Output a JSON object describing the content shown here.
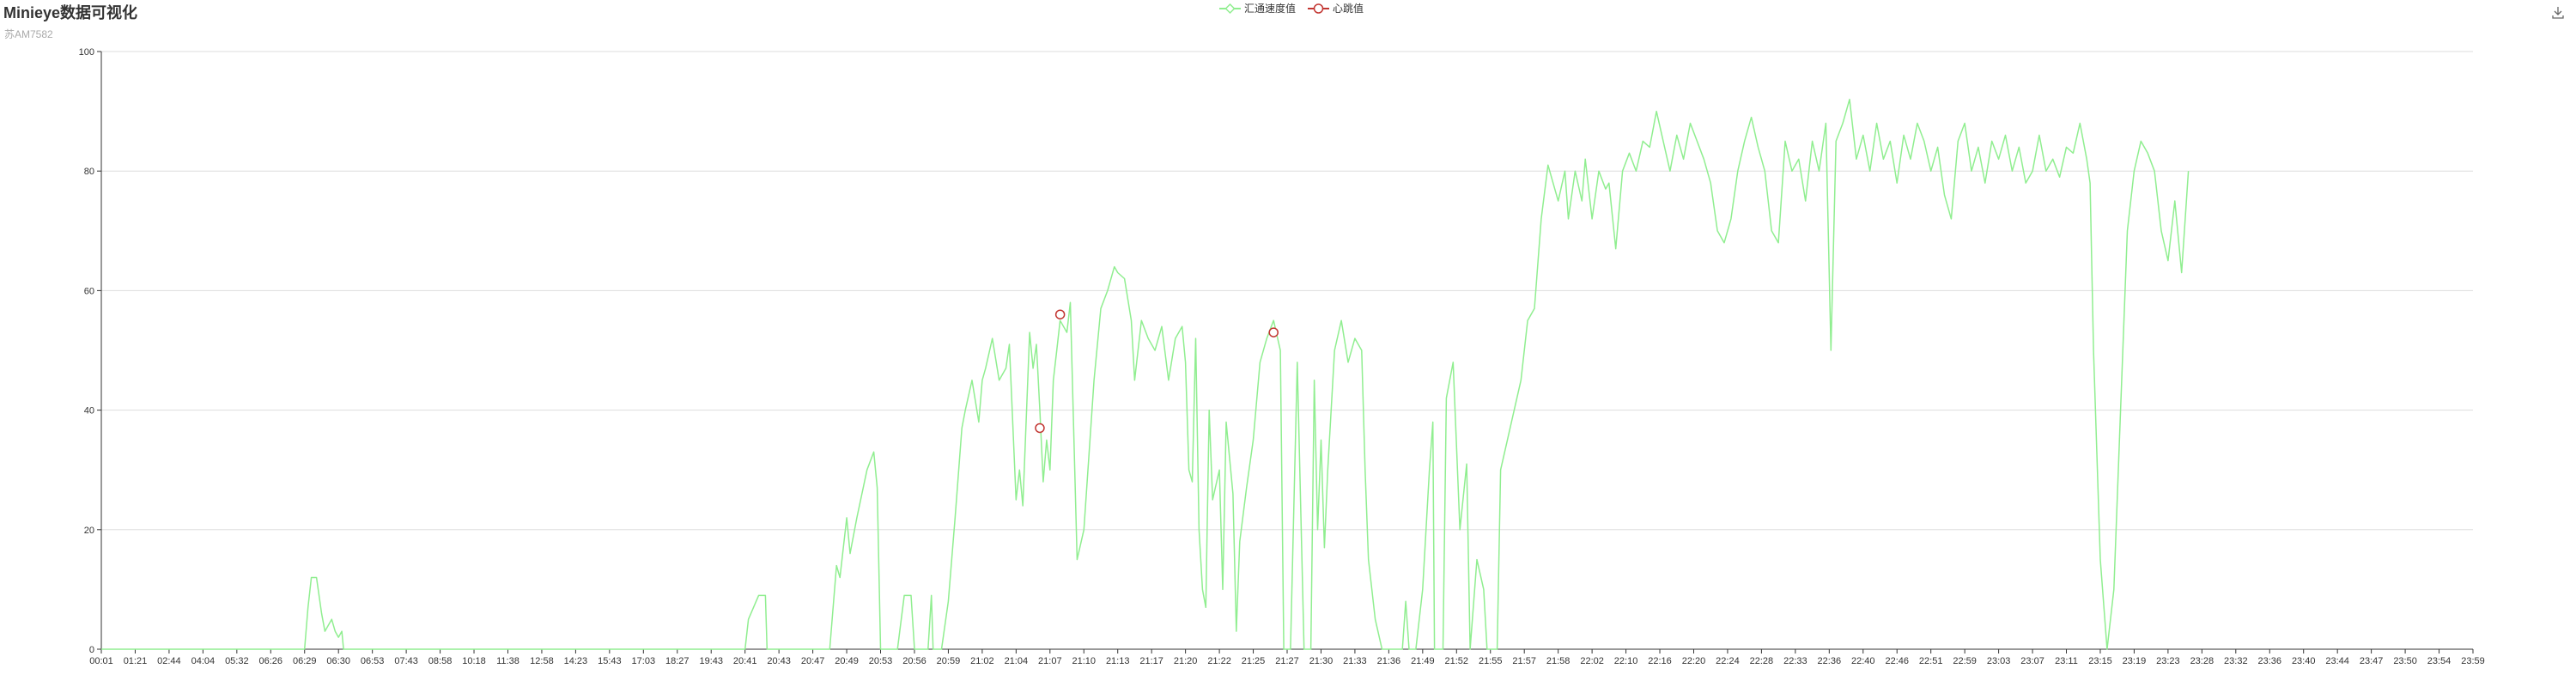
{
  "title": "Minieye数据可视化",
  "subtitle": "苏AM7582",
  "legend": [
    {
      "name": "汇通速度值",
      "color": "#90ee90"
    },
    {
      "name": "心跳值",
      "color": "#c23531"
    }
  ],
  "toolbox": {
    "icon": "download-icon"
  },
  "chart_data": {
    "type": "line",
    "title": "Minieye数据可视化",
    "subtitle": "苏AM7582",
    "xlabel": "",
    "ylabel": "",
    "ylim": [
      0,
      100
    ],
    "yticks": [
      0,
      20,
      40,
      60,
      80,
      100
    ],
    "grid": true,
    "legend_position": "top-center",
    "x_tick_labels": [
      "00:01",
      "01:21",
      "02:44",
      "04:04",
      "05:32",
      "06:26",
      "06:29",
      "06:30",
      "06:53",
      "07:43",
      "08:58",
      "10:18",
      "11:38",
      "12:58",
      "14:23",
      "15:43",
      "17:03",
      "18:27",
      "19:43",
      "20:41",
      "20:43",
      "20:47",
      "20:49",
      "20:53",
      "20:56",
      "20:59",
      "21:02",
      "21:04",
      "21:07",
      "21:10",
      "21:13",
      "21:17",
      "21:20",
      "21:22",
      "21:25",
      "21:27",
      "21:30",
      "21:33",
      "21:36",
      "21:49",
      "21:52",
      "21:55",
      "21:57",
      "21:58",
      "22:02",
      "22:10",
      "22:16",
      "22:20",
      "22:24",
      "22:28",
      "22:33",
      "22:36",
      "22:40",
      "22:46",
      "22:51",
      "22:59",
      "23:03",
      "23:07",
      "23:11",
      "23:15",
      "23:19",
      "23:23",
      "23:28",
      "23:32",
      "23:36",
      "23:40",
      "23:44",
      "23:47",
      "23:50",
      "23:54",
      "23:59"
    ],
    "series": [
      {
        "name": "汇通速度值",
        "color": "#90ee90",
        "points": [
          [
            0,
            0
          ],
          [
            6,
            0
          ],
          [
            6.1,
            7
          ],
          [
            6.2,
            12
          ],
          [
            6.35,
            12
          ],
          [
            6.5,
            6
          ],
          [
            6.6,
            3
          ],
          [
            6.8,
            5
          ],
          [
            6.9,
            3
          ],
          [
            7,
            2
          ],
          [
            7.1,
            3
          ],
          [
            7.15,
            0
          ],
          [
            7.5,
            0
          ],
          [
            19,
            0
          ],
          [
            19.1,
            5
          ],
          [
            19.4,
            9
          ],
          [
            19.6,
            9
          ],
          [
            19.65,
            0
          ],
          [
            21.5,
            0
          ],
          [
            21.7,
            14
          ],
          [
            21.8,
            12
          ],
          [
            22,
            22
          ],
          [
            22.1,
            16
          ],
          [
            22.3,
            22
          ],
          [
            22.6,
            30
          ],
          [
            22.8,
            33
          ],
          [
            22.9,
            27
          ],
          [
            23,
            0
          ],
          [
            23.5,
            0
          ],
          [
            23.7,
            9
          ],
          [
            23.9,
            9
          ],
          [
            24,
            0
          ],
          [
            24.4,
            0
          ],
          [
            24.5,
            9
          ],
          [
            24.55,
            0
          ],
          [
            24.8,
            0
          ],
          [
            25,
            8
          ],
          [
            25.2,
            22
          ],
          [
            25.4,
            37
          ],
          [
            25.5,
            40
          ],
          [
            25.7,
            45
          ],
          [
            25.9,
            38
          ],
          [
            26,
            45
          ],
          [
            26.1,
            47
          ],
          [
            26.3,
            52
          ],
          [
            26.5,
            45
          ],
          [
            26.7,
            47
          ],
          [
            26.8,
            51
          ],
          [
            27,
            25
          ],
          [
            27.1,
            30
          ],
          [
            27.2,
            24
          ],
          [
            27.4,
            53
          ],
          [
            27.5,
            47
          ],
          [
            27.6,
            51
          ],
          [
            27.7,
            40
          ],
          [
            27.8,
            28
          ],
          [
            27.9,
            35
          ],
          [
            28,
            30
          ],
          [
            28.1,
            45
          ],
          [
            28.2,
            50
          ],
          [
            28.3,
            55
          ],
          [
            28.5,
            53
          ],
          [
            28.6,
            58
          ],
          [
            28.8,
            15
          ],
          [
            29,
            20
          ],
          [
            29.3,
            45
          ],
          [
            29.5,
            57
          ],
          [
            29.7,
            60
          ],
          [
            29.9,
            64
          ],
          [
            30,
            63
          ],
          [
            30.2,
            62
          ],
          [
            30.4,
            55
          ],
          [
            30.5,
            45
          ],
          [
            30.7,
            55
          ],
          [
            30.9,
            52
          ],
          [
            31.1,
            50
          ],
          [
            31.3,
            54
          ],
          [
            31.5,
            45
          ],
          [
            31.7,
            52
          ],
          [
            31.9,
            54
          ],
          [
            32,
            48
          ],
          [
            32.1,
            30
          ],
          [
            32.2,
            28
          ],
          [
            32.3,
            52
          ],
          [
            32.4,
            20
          ],
          [
            32.5,
            10
          ],
          [
            32.6,
            7
          ],
          [
            32.7,
            40
          ],
          [
            32.8,
            25
          ],
          [
            33,
            30
          ],
          [
            33.1,
            10
          ],
          [
            33.2,
            38
          ],
          [
            33.4,
            26
          ],
          [
            33.5,
            3
          ],
          [
            33.6,
            18
          ],
          [
            33.8,
            27
          ],
          [
            34,
            35
          ],
          [
            34.2,
            48
          ],
          [
            34.4,
            52
          ],
          [
            34.6,
            55
          ],
          [
            34.8,
            50
          ],
          [
            34.9,
            0
          ],
          [
            35.1,
            0
          ],
          [
            35.3,
            48
          ],
          [
            35.5,
            0
          ],
          [
            35.7,
            0
          ],
          [
            35.8,
            45
          ],
          [
            35.9,
            20
          ],
          [
            36,
            35
          ],
          [
            36.1,
            17
          ],
          [
            36.2,
            30
          ],
          [
            36.4,
            50
          ],
          [
            36.6,
            55
          ],
          [
            36.8,
            48
          ],
          [
            37,
            52
          ],
          [
            37.2,
            50
          ],
          [
            37.3,
            30
          ],
          [
            37.4,
            15
          ],
          [
            37.6,
            5
          ],
          [
            37.8,
            0
          ],
          [
            38.4,
            0
          ],
          [
            38.5,
            8
          ],
          [
            38.6,
            0
          ],
          [
            38.8,
            0
          ],
          [
            39,
            10
          ],
          [
            39.2,
            30
          ],
          [
            39.3,
            38
          ],
          [
            39.35,
            0
          ],
          [
            39.6,
            0
          ],
          [
            39.7,
            42
          ],
          [
            39.9,
            48
          ],
          [
            40.1,
            20
          ],
          [
            40.3,
            31
          ],
          [
            40.4,
            0
          ],
          [
            40.6,
            15
          ],
          [
            40.8,
            10
          ],
          [
            40.9,
            0
          ],
          [
            41.2,
            0
          ],
          [
            41.3,
            30
          ],
          [
            41.5,
            35
          ],
          [
            41.7,
            40
          ],
          [
            41.9,
            45
          ],
          [
            42.1,
            55
          ],
          [
            42.3,
            57
          ],
          [
            42.5,
            72
          ],
          [
            42.7,
            81
          ],
          [
            42.9,
            77
          ],
          [
            43,
            75
          ],
          [
            43.2,
            80
          ],
          [
            43.3,
            72
          ],
          [
            43.5,
            80
          ],
          [
            43.7,
            75
          ],
          [
            43.8,
            82
          ],
          [
            44,
            72
          ],
          [
            44.2,
            80
          ],
          [
            44.4,
            77
          ],
          [
            44.5,
            78
          ],
          [
            44.7,
            67
          ],
          [
            44.9,
            80
          ],
          [
            45.1,
            83
          ],
          [
            45.3,
            80
          ],
          [
            45.5,
            85
          ],
          [
            45.7,
            84
          ],
          [
            45.9,
            90
          ],
          [
            46.1,
            85
          ],
          [
            46.3,
            80
          ],
          [
            46.5,
            86
          ],
          [
            46.7,
            82
          ],
          [
            46.9,
            88
          ],
          [
            47.1,
            85
          ],
          [
            47.3,
            82
          ],
          [
            47.5,
            78
          ],
          [
            47.7,
            70
          ],
          [
            47.9,
            68
          ],
          [
            48.1,
            72
          ],
          [
            48.3,
            80
          ],
          [
            48.5,
            85
          ],
          [
            48.7,
            89
          ],
          [
            48.9,
            84
          ],
          [
            49.1,
            80
          ],
          [
            49.3,
            70
          ],
          [
            49.5,
            68
          ],
          [
            49.7,
            85
          ],
          [
            49.9,
            80
          ],
          [
            50.1,
            82
          ],
          [
            50.3,
            75
          ],
          [
            50.5,
            85
          ],
          [
            50.7,
            80
          ],
          [
            50.9,
            88
          ],
          [
            51.05,
            50
          ],
          [
            51.2,
            85
          ],
          [
            51.4,
            88
          ],
          [
            51.6,
            92
          ],
          [
            51.8,
            82
          ],
          [
            52,
            86
          ],
          [
            52.2,
            80
          ],
          [
            52.4,
            88
          ],
          [
            52.6,
            82
          ],
          [
            52.8,
            85
          ],
          [
            53,
            78
          ],
          [
            53.2,
            86
          ],
          [
            53.4,
            82
          ],
          [
            53.6,
            88
          ],
          [
            53.8,
            85
          ],
          [
            54,
            80
          ],
          [
            54.2,
            84
          ],
          [
            54.4,
            76
          ],
          [
            54.6,
            72
          ],
          [
            54.8,
            85
          ],
          [
            55,
            88
          ],
          [
            55.2,
            80
          ],
          [
            55.4,
            84
          ],
          [
            55.6,
            78
          ],
          [
            55.8,
            85
          ],
          [
            56,
            82
          ],
          [
            56.2,
            86
          ],
          [
            56.4,
            80
          ],
          [
            56.6,
            84
          ],
          [
            56.8,
            78
          ],
          [
            57,
            80
          ],
          [
            57.2,
            86
          ],
          [
            57.4,
            80
          ],
          [
            57.6,
            82
          ],
          [
            57.8,
            79
          ],
          [
            58,
            84
          ],
          [
            58.2,
            83
          ],
          [
            58.4,
            88
          ],
          [
            58.6,
            82
          ],
          [
            58.7,
            78
          ],
          [
            58.8,
            50
          ],
          [
            59,
            15
          ],
          [
            59.2,
            0
          ],
          [
            59.4,
            10
          ],
          [
            59.6,
            40
          ],
          [
            59.8,
            70
          ],
          [
            60,
            80
          ],
          [
            60.2,
            85
          ],
          [
            60.4,
            83
          ],
          [
            60.6,
            80
          ],
          [
            60.8,
            70
          ],
          [
            61,
            65
          ],
          [
            61.2,
            75
          ],
          [
            61.4,
            63
          ],
          [
            61.6,
            80
          ]
        ]
      },
      {
        "name": "心跳值",
        "color": "#c23531",
        "points": [
          [
            27.7,
            37
          ],
          [
            28.3,
            56
          ],
          [
            34.6,
            53
          ]
        ]
      }
    ]
  }
}
